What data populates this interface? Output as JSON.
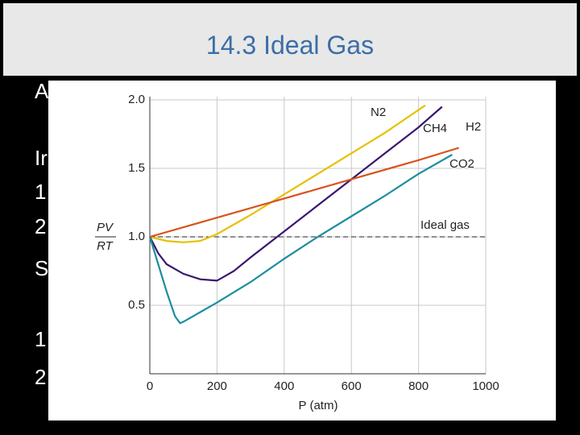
{
  "slide": {
    "title": "14.3 Ideal Gas",
    "fragments": [
      "A",
      "Ir",
      "1",
      "2",
      "S",
      "1",
      "2"
    ]
  },
  "chart_data": {
    "type": "line",
    "y_label_numerator": "PV",
    "y_label_denominator": "RT",
    "x_label": "P (atm)",
    "xlim": [
      0,
      1000
    ],
    "ylim": [
      0,
      2.0
    ],
    "xticks": [
      0,
      200,
      400,
      600,
      800,
      1000
    ],
    "yticks": [
      {
        "value": 0.5,
        "label": "0.5"
      },
      {
        "value": 1.0,
        "label": "1.0"
      },
      {
        "value": 1.5,
        "label": "1.5"
      },
      {
        "value": 2.0,
        "label": "2.0"
      }
    ],
    "grid": true,
    "reference": {
      "label": "Ideal gas",
      "value": 1.0
    },
    "series": [
      {
        "name": "N2",
        "color": "#e6c000",
        "x": [
          0,
          50,
          100,
          150,
          200,
          300,
          400,
          500,
          600,
          700,
          820
        ],
        "values": [
          1.0,
          0.97,
          0.96,
          0.97,
          1.02,
          1.16,
          1.31,
          1.46,
          1.61,
          1.76,
          1.96
        ]
      },
      {
        "name": "CH4",
        "color": "#3a1670",
        "x": [
          0,
          25,
          50,
          100,
          150,
          200,
          250,
          300,
          400,
          500,
          600,
          700,
          800,
          870
        ],
        "values": [
          1.0,
          0.88,
          0.8,
          0.73,
          0.69,
          0.68,
          0.75,
          0.85,
          1.04,
          1.23,
          1.42,
          1.61,
          1.8,
          1.95
        ]
      },
      {
        "name": "H2",
        "color": "#d9531e",
        "x": [
          0,
          200,
          400,
          600,
          800,
          920
        ],
        "values": [
          1.0,
          1.14,
          1.28,
          1.42,
          1.56,
          1.65
        ]
      },
      {
        "name": "CO2",
        "color": "#1c8ea0",
        "x": [
          0,
          25,
          50,
          75,
          90,
          100,
          200,
          300,
          400,
          500,
          600,
          700,
          800,
          900
        ],
        "values": [
          1.0,
          0.8,
          0.6,
          0.42,
          0.37,
          0.38,
          0.52,
          0.67,
          0.84,
          1.0,
          1.15,
          1.3,
          1.46,
          1.6
        ]
      }
    ]
  }
}
